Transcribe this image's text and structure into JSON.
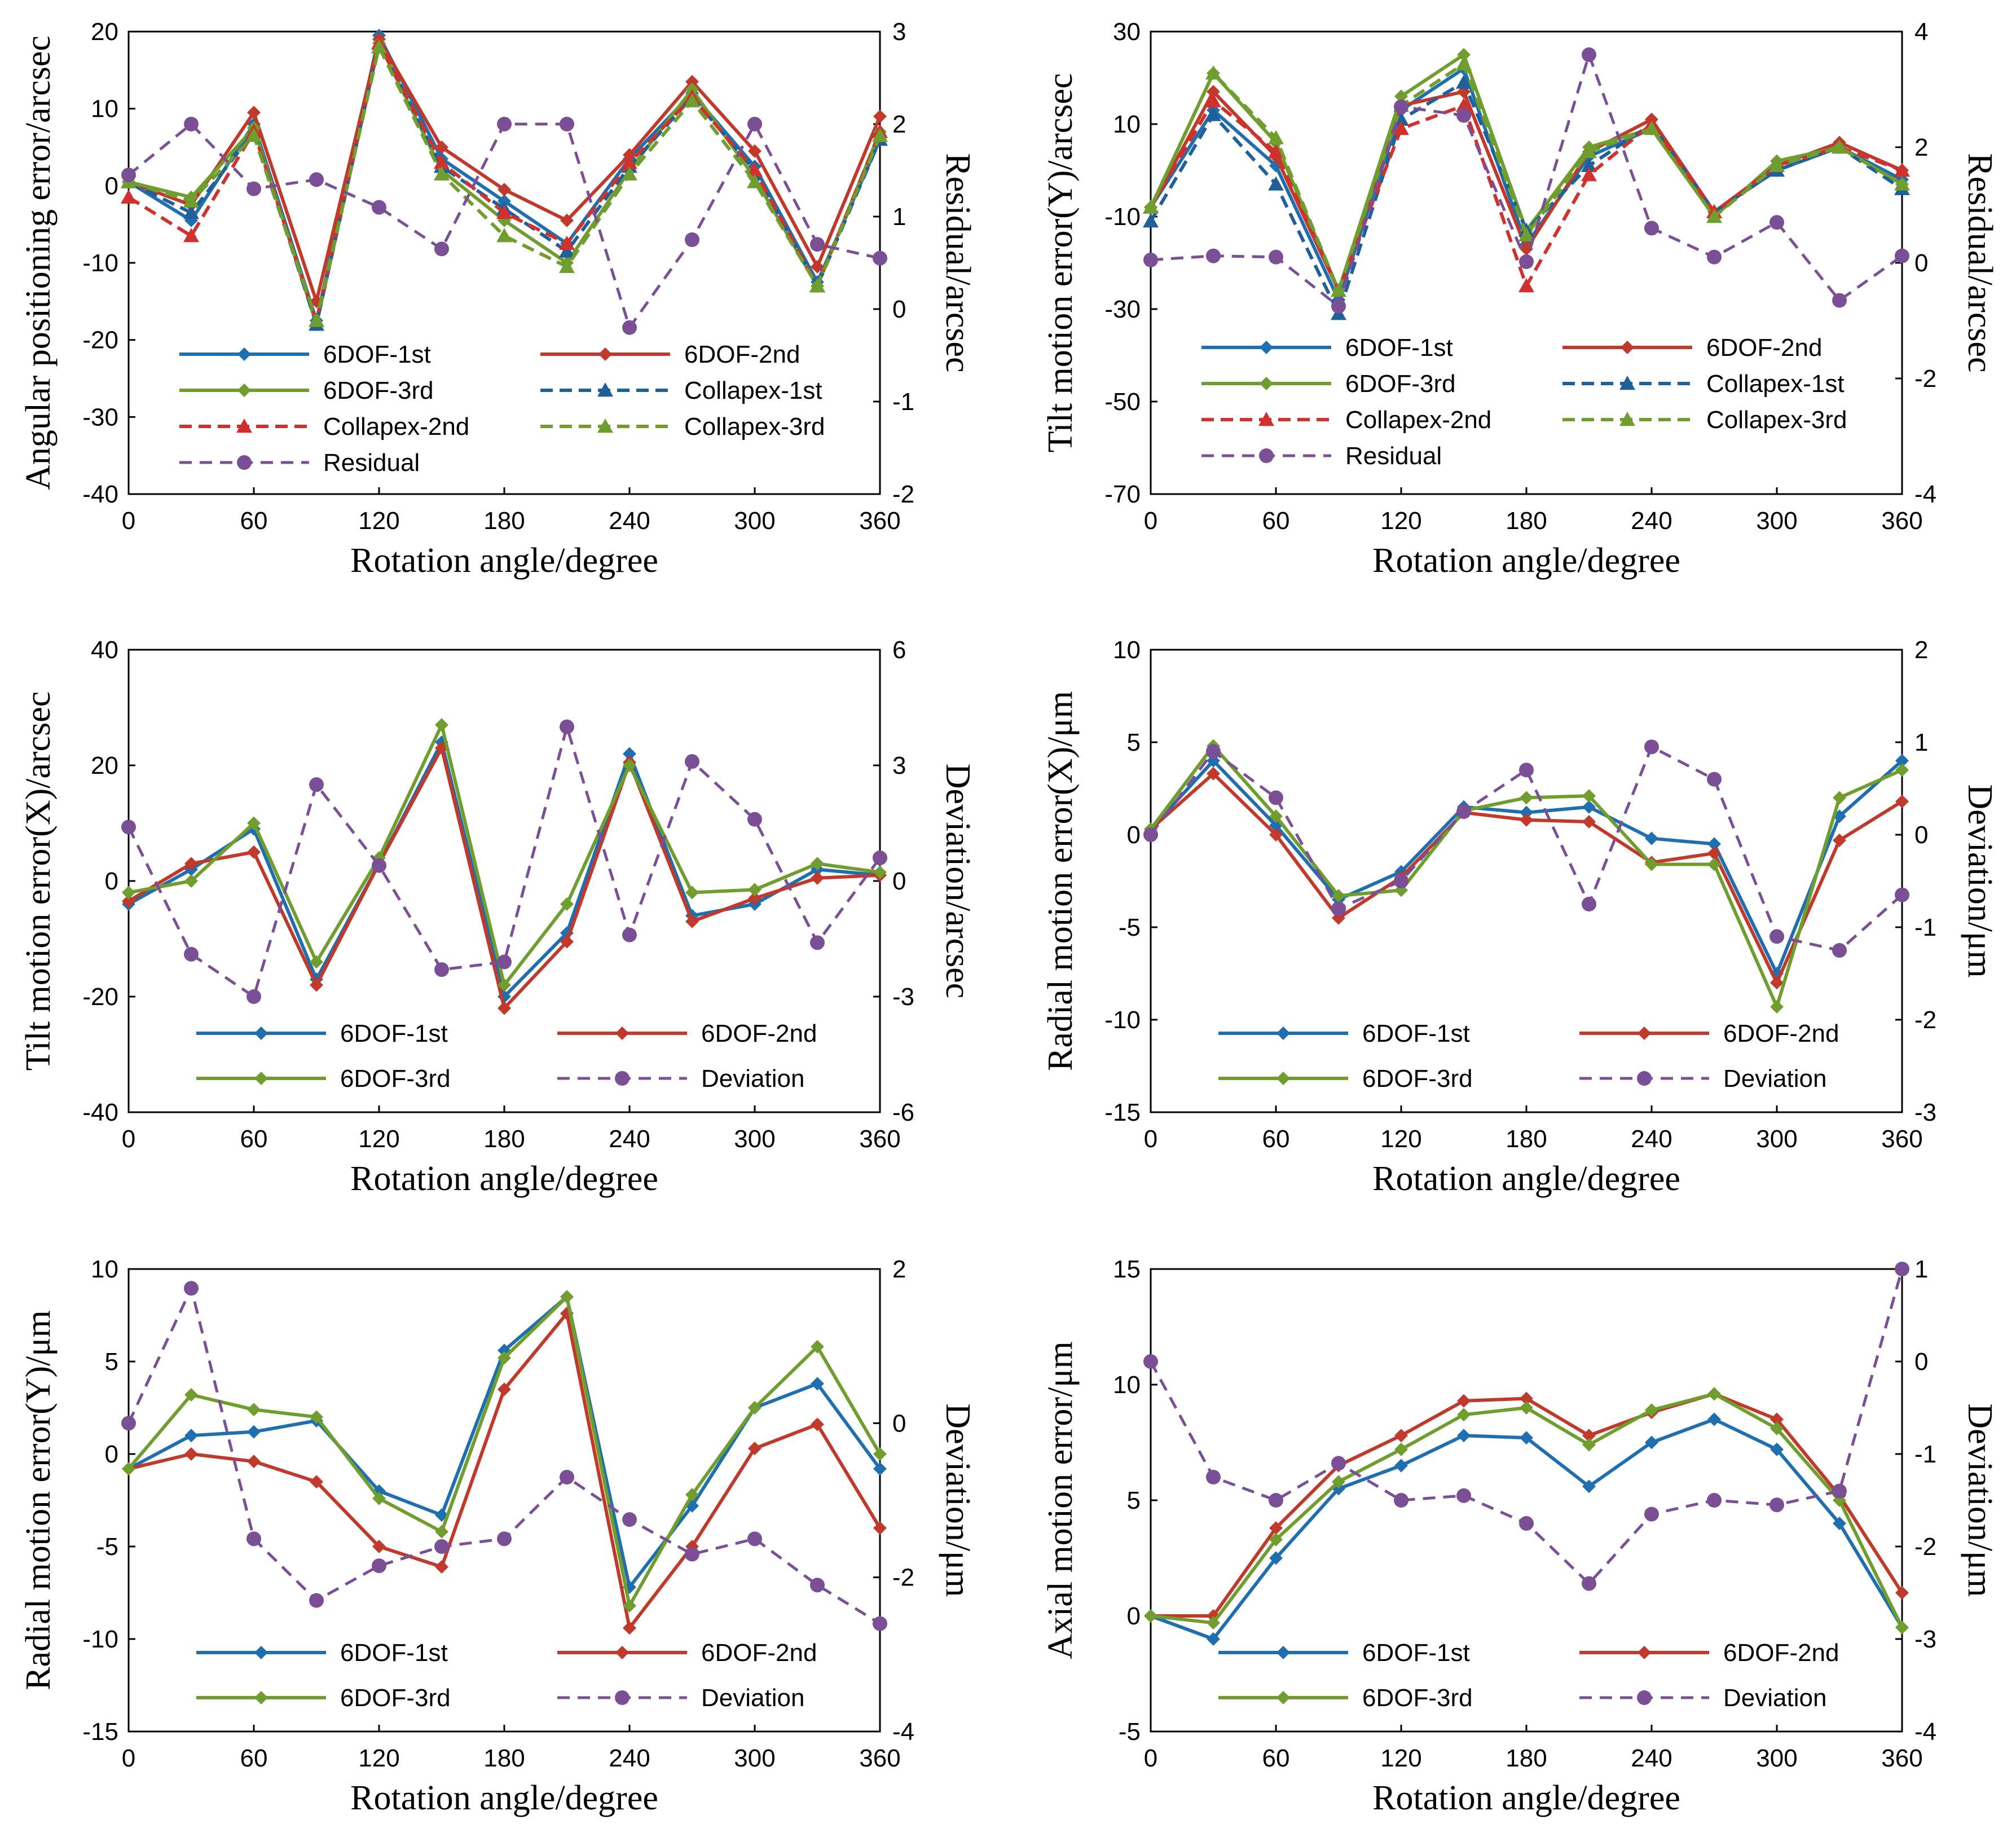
{
  "colors": {
    "6dof-1st": "#1f6fb0",
    "6dof-2nd": "#c0392b",
    "6dof-3rd": "#6f9e2f",
    "collapex-1st": "#1f5f9a",
    "collapex-2nd": "#d0312d",
    "collapex-3rd": "#6f9e2f",
    "residual": "#7a4f96"
  },
  "chart_data": [
    {
      "type": "line",
      "xlabel": "Rotation angle/degree",
      "ylabel": "Angular positioning error/arcsec",
      "y2label": "Residual/arcsec",
      "xlim": [
        0,
        360
      ],
      "xticks": [
        "0",
        "60",
        "120",
        "180",
        "240",
        "300",
        "360"
      ],
      "ylim": [
        -40,
        20
      ],
      "yticks": [
        "-40",
        "-30",
        "-20",
        "-10",
        "0",
        "10",
        "20"
      ],
      "y2lim": [
        -2,
        3
      ],
      "y2ticks": [
        "-2",
        "-1",
        "0",
        "1",
        "2",
        "3"
      ],
      "x": [
        0,
        30,
        60,
        90,
        120,
        150,
        180,
        210,
        240,
        270,
        300,
        330,
        360
      ],
      "legend_columns": 2,
      "series": [
        {
          "name": "6DOF-1st",
          "style": "6dof-1st",
          "axis": "left",
          "values": [
            0.5,
            -4.5,
            8,
            -17.5,
            19.5,
            3.5,
            -2,
            -7.5,
            3.5,
            12,
            2.5,
            -12.5,
            6
          ]
        },
        {
          "name": "6DOF-2nd",
          "style": "6dof-2nd",
          "axis": "left",
          "values": [
            0.5,
            -2.5,
            9.5,
            -15,
            19,
            5,
            -0.5,
            -4.5,
            4,
            13.5,
            4.5,
            -10.5,
            9
          ]
        },
        {
          "name": "6DOF-3rd",
          "style": "6dof-3rd",
          "axis": "left",
          "values": [
            0.5,
            -1.5,
            7.5,
            -18,
            18.5,
            2,
            -4.5,
            -10,
            2,
            12.5,
            1,
            -13,
            7
          ]
        },
        {
          "name": "Collapex-1st",
          "style": "collapex-1st",
          "axis": "left",
          "values": [
            0.5,
            -3.5,
            7,
            -18,
            18.5,
            2.5,
            -3,
            -8.5,
            2.5,
            11.5,
            2,
            -13,
            6
          ]
        },
        {
          "name": "Collapex-2nd",
          "style": "collapex-2nd",
          "axis": "left",
          "values": [
            -1.5,
            -6.5,
            7,
            -17.5,
            18.5,
            3,
            -3.5,
            -7.5,
            3,
            11.5,
            2,
            -13,
            7
          ]
        },
        {
          "name": "Collapex-3rd",
          "style": "collapex-3rd",
          "axis": "left",
          "values": [
            0.5,
            -2,
            6.5,
            -17.5,
            18,
            1.5,
            -6.5,
            -10.5,
            1.5,
            11,
            0.5,
            -13,
            6.5
          ]
        },
        {
          "name": "Residual",
          "style": "residual",
          "axis": "right",
          "values": [
            1.45,
            2.0,
            1.3,
            1.4,
            1.1,
            0.65,
            2.0,
            2.0,
            -0.2,
            0.75,
            2.0,
            0.7,
            0.55
          ]
        }
      ]
    },
    {
      "type": "line",
      "xlabel": "Rotation angle/degree",
      "ylabel": "Tilt motion error(Y)/arcsec",
      "y2label": "Residual/arcsec",
      "xlim": [
        0,
        360
      ],
      "xticks": [
        "0",
        "60",
        "120",
        "180",
        "240",
        "300",
        "360"
      ],
      "ylim": [
        -70,
        30
      ],
      "yticks": [
        "-70",
        "-50",
        "-30",
        "-10",
        "10",
        "30"
      ],
      "y2lim": [
        -4,
        4
      ],
      "y2ticks": [
        "-4",
        "-2",
        "0",
        "2",
        "4"
      ],
      "x": [
        0,
        30,
        60,
        90,
        120,
        150,
        180,
        210,
        240,
        270,
        300,
        330,
        360
      ],
      "legend_columns": 2,
      "series": [
        {
          "name": "6DOF-1st",
          "style": "6dof-1st",
          "axis": "left",
          "values": [
            -8,
            13,
            1,
            -28,
            13,
            22,
            -16,
            3,
            9,
            -9,
            0,
            5,
            -2
          ]
        },
        {
          "name": "6DOF-2nd",
          "style": "6dof-2nd",
          "axis": "left",
          "values": [
            -8,
            17,
            3,
            -26,
            14,
            17,
            -17,
            4,
            11,
            -9,
            1,
            6,
            0
          ]
        },
        {
          "name": "6DOF-3rd",
          "style": "6dof-3rd",
          "axis": "left",
          "values": [
            -8,
            21,
            6,
            -26,
            16,
            25,
            -13,
            5,
            9,
            -10,
            2,
            5,
            -3
          ]
        },
        {
          "name": "Collapex-1st",
          "style": "collapex-1st",
          "axis": "left",
          "values": [
            -11,
            12,
            -3,
            -31,
            11,
            19,
            -13,
            1,
            10,
            -9,
            0,
            5,
            -4
          ]
        },
        {
          "name": "Collapex-2nd",
          "style": "collapex-2nd",
          "axis": "left",
          "values": [
            -8,
            15,
            4,
            -26,
            9,
            14,
            -25,
            -1,
            10,
            -9,
            1,
            5,
            0
          ]
        },
        {
          "name": "Collapex-3rd",
          "style": "collapex-3rd",
          "axis": "left",
          "values": [
            -8,
            21,
            7,
            -26,
            14,
            23,
            -14,
            4,
            9,
            -10,
            1,
            5,
            -3
          ]
        },
        {
          "name": "Residual",
          "style": "residual",
          "axis": "right",
          "values": [
            0.05,
            0.12,
            0.1,
            -0.75,
            2.7,
            2.55,
            0.02,
            3.6,
            0.6,
            0.1,
            0.7,
            -0.65,
            0.12
          ]
        }
      ]
    },
    {
      "type": "line",
      "xlabel": "Rotation angle/degree",
      "ylabel": "Tilt motion error(X)/arcsec",
      "y2label": "Deviation/arcsec",
      "xlim": [
        0,
        360
      ],
      "xticks": [
        "0",
        "60",
        "120",
        "180",
        "240",
        "300",
        "360"
      ],
      "ylim": [
        -40,
        40
      ],
      "yticks": [
        "-40",
        "-20",
        "0",
        "20",
        "40"
      ],
      "y2lim": [
        -6,
        6
      ],
      "y2ticks": [
        "-6",
        "-3",
        "0",
        "3",
        "6"
      ],
      "x": [
        0,
        30,
        60,
        90,
        120,
        150,
        180,
        210,
        240,
        270,
        300,
        330,
        360
      ],
      "legend_columns": 2,
      "series": [
        {
          "name": "6DOF-1st",
          "style": "6dof-1st",
          "axis": "left",
          "values": [
            -4,
            2,
            9,
            -17,
            3,
            24,
            -20,
            -9,
            22,
            -6,
            -4,
            2,
            1
          ]
        },
        {
          "name": "6DOF-2nd",
          "style": "6dof-2nd",
          "axis": "left",
          "values": [
            -3.5,
            3,
            5,
            -18,
            3,
            23,
            -22,
            -10.5,
            20.5,
            -7,
            -3,
            0.5,
            1
          ]
        },
        {
          "name": "6DOF-3rd",
          "style": "6dof-3rd",
          "axis": "left",
          "values": [
            -2,
            0,
            10,
            -14,
            4,
            27,
            -18,
            -4,
            20,
            -2,
            -1.5,
            3,
            1.5
          ]
        },
        {
          "name": "Deviation",
          "style": "residual",
          "axis": "right",
          "values": [
            1.4,
            -1.9,
            -3.0,
            2.5,
            0.4,
            -2.3,
            -2.1,
            4.0,
            -1.4,
            3.1,
            1.6,
            -1.6,
            0.6
          ]
        }
      ]
    },
    {
      "type": "line",
      "xlabel": "Rotation angle/degree",
      "ylabel": "Radial motion error(X)/μm",
      "y2label": "Deviation/μm",
      "xlim": [
        0,
        360
      ],
      "xticks": [
        "0",
        "60",
        "120",
        "180",
        "240",
        "300",
        "360"
      ],
      "ylim": [
        -15,
        10
      ],
      "yticks": [
        "-15",
        "-10",
        "-5",
        "0",
        "5",
        "10"
      ],
      "y2lim": [
        -3,
        2
      ],
      "y2ticks": [
        "-3",
        "-2",
        "-1",
        "0",
        "1",
        "2"
      ],
      "x": [
        0,
        30,
        60,
        90,
        120,
        150,
        180,
        210,
        240,
        270,
        300,
        330,
        360
      ],
      "legend_columns": 2,
      "series": [
        {
          "name": "6DOF-1st",
          "style": "6dof-1st",
          "axis": "left",
          "values": [
            0.3,
            4,
            0.5,
            -3.5,
            -2,
            1.5,
            1.2,
            1.5,
            -0.2,
            -0.5,
            -7.5,
            1,
            4
          ]
        },
        {
          "name": "6DOF-2nd",
          "style": "6dof-2nd",
          "axis": "left",
          "values": [
            0.3,
            3.3,
            0,
            -4.5,
            -2.3,
            1.2,
            0.8,
            0.7,
            -1.5,
            -1,
            -8,
            -0.3,
            1.8
          ]
        },
        {
          "name": "6DOF-3rd",
          "style": "6dof-3rd",
          "axis": "left",
          "values": [
            0.3,
            4.8,
            1,
            -3.3,
            -3,
            1.3,
            2,
            2.1,
            -1.6,
            -1.6,
            -9.3,
            2,
            3.5
          ]
        },
        {
          "name": "Deviation",
          "style": "residual",
          "axis": "right",
          "values": [
            0,
            0.9,
            0.4,
            -0.8,
            -0.5,
            0.25,
            0.7,
            -0.75,
            0.95,
            0.6,
            -1.1,
            -1.25,
            -0.65
          ]
        }
      ]
    },
    {
      "type": "line",
      "xlabel": "Rotation angle/degree",
      "ylabel": "Radial motion error(Y)/μm",
      "y2label": "Deviation/μm",
      "xlim": [
        0,
        360
      ],
      "xticks": [
        "0",
        "60",
        "120",
        "180",
        "240",
        "300",
        "360"
      ],
      "ylim": [
        -15,
        10
      ],
      "yticks": [
        "-15",
        "-10",
        "-5",
        "0",
        "5",
        "10"
      ],
      "y2lim": [
        -4,
        2
      ],
      "y2ticks": [
        "-4",
        "-2",
        "0",
        "2"
      ],
      "x": [
        0,
        30,
        60,
        90,
        120,
        150,
        180,
        210,
        240,
        270,
        300,
        330,
        360
      ],
      "legend_columns": 2,
      "series": [
        {
          "name": "6DOF-1st",
          "style": "6dof-1st",
          "axis": "left",
          "values": [
            -0.8,
            1,
            1.2,
            1.8,
            -2,
            -3.3,
            5.6,
            8.5,
            -7.2,
            -2.8,
            2.5,
            3.8,
            -0.8
          ]
        },
        {
          "name": "6DOF-2nd",
          "style": "6dof-2nd",
          "axis": "left",
          "values": [
            -0.8,
            0,
            -0.4,
            -1.5,
            -5,
            -6.1,
            3.5,
            7.6,
            -9.4,
            -5,
            0.3,
            1.6,
            -4
          ]
        },
        {
          "name": "6DOF-3rd",
          "style": "6dof-3rd",
          "axis": "left",
          "values": [
            -0.8,
            3.2,
            2.4,
            2,
            -2.4,
            -4.2,
            5.2,
            8.5,
            -8.2,
            -2.2,
            2.5,
            5.8,
            0
          ]
        },
        {
          "name": "Deviation",
          "style": "residual",
          "axis": "right",
          "values": [
            0,
            1.75,
            -1.5,
            -2.3,
            -1.85,
            -1.6,
            -1.5,
            -0.7,
            -1.25,
            -1.7,
            -1.5,
            -2.1,
            -2.6
          ]
        }
      ]
    },
    {
      "type": "line",
      "xlabel": "Rotation angle/degree",
      "ylabel": "Axial motion error/μm",
      "y2label": "Deviation/μm",
      "xlim": [
        0,
        360
      ],
      "xticks": [
        "0",
        "60",
        "120",
        "180",
        "240",
        "300",
        "360"
      ],
      "ylim": [
        -5,
        15
      ],
      "yticks": [
        "-5",
        "0",
        "5",
        "10",
        "15"
      ],
      "y2lim": [
        -4,
        1
      ],
      "y2ticks": [
        "-4",
        "-3",
        "-2",
        "-1",
        "0",
        "1"
      ],
      "x": [
        0,
        30,
        60,
        90,
        120,
        150,
        180,
        210,
        240,
        270,
        300,
        330,
        360
      ],
      "legend_columns": 2,
      "series": [
        {
          "name": "6DOF-1st",
          "style": "6dof-1st",
          "axis": "left",
          "values": [
            0,
            -1,
            2.5,
            5.5,
            6.5,
            7.8,
            7.7,
            5.6,
            7.5,
            8.5,
            7.2,
            4,
            -0.5
          ]
        },
        {
          "name": "6DOF-2nd",
          "style": "6dof-2nd",
          "axis": "left",
          "values": [
            0,
            0,
            3.8,
            6.5,
            7.8,
            9.3,
            9.4,
            7.8,
            8.8,
            9.6,
            8.5,
            5.2,
            1
          ]
        },
        {
          "name": "6DOF-3rd",
          "style": "6dof-3rd",
          "axis": "left",
          "values": [
            0,
            -0.3,
            3.3,
            5.8,
            7.2,
            8.7,
            9,
            7.4,
            8.9,
            9.6,
            8.1,
            5,
            -0.5
          ]
        },
        {
          "name": "Deviation",
          "style": "residual",
          "axis": "right",
          "values": [
            0,
            -1.25,
            -1.5,
            -1.1,
            -1.5,
            -1.45,
            -1.75,
            -2.4,
            -1.65,
            -1.5,
            -1.55,
            -1.4,
            1.0
          ]
        }
      ]
    }
  ]
}
